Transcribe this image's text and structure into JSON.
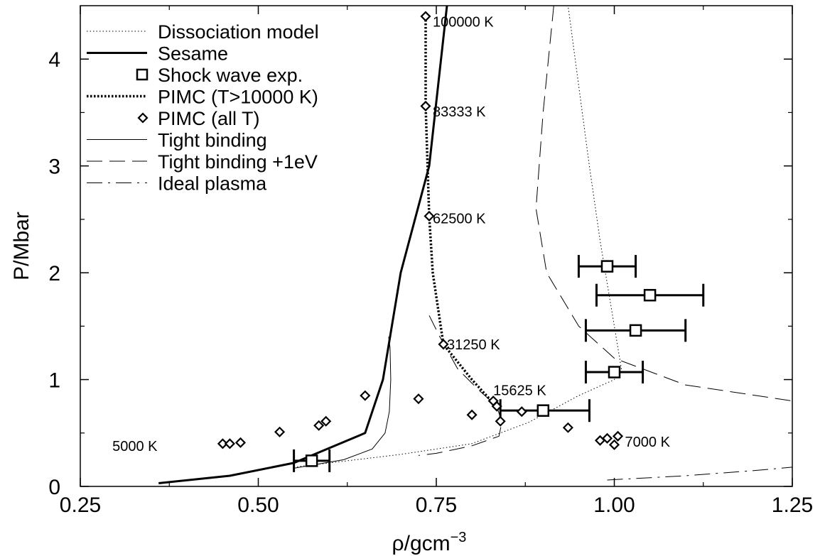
{
  "chart_data": {
    "type": "line",
    "xlabel": "ρ/gcm",
    "xlabel_sup": "−3",
    "ylabel": "P/Mbar",
    "xlim": [
      0.25,
      1.25
    ],
    "ylim": [
      0,
      4.5
    ],
    "xticks": [
      0.25,
      0.5,
      0.75,
      1.0,
      1.25
    ],
    "xtick_labels": [
      "0.25",
      "0.50",
      "0.75",
      "1.00",
      "1.25"
    ],
    "yticks": [
      0,
      1,
      2,
      3,
      4
    ],
    "ytick_labels": [
      "0",
      "1",
      "2",
      "3",
      "4"
    ],
    "grid": false,
    "legend_position": "top-left",
    "legend": [
      {
        "label": "Dissociation model",
        "style": "dotted-thin"
      },
      {
        "label": "Sesame",
        "style": "solid-thick"
      },
      {
        "label": "Shock wave exp.",
        "style": "square-marker"
      },
      {
        "label": "PIMC (T>10000 K)",
        "style": "dotted-thick"
      },
      {
        "label": "PIMC (all T)",
        "style": "diamond-marker"
      },
      {
        "label": "Tight binding",
        "style": "solid-thin"
      },
      {
        "label": "Tight binding +1eV",
        "style": "dashed-long"
      },
      {
        "label": "Ideal plasma",
        "style": "dash-dot"
      }
    ],
    "series": [
      {
        "name": "Sesame",
        "style": "solid-thick",
        "x": [
          0.36,
          0.46,
          0.55,
          0.65,
          0.675,
          0.7,
          0.74,
          0.765
        ],
        "y": [
          0.03,
          0.1,
          0.22,
          0.5,
          1.0,
          2.0,
          3.0,
          4.5
        ]
      },
      {
        "name": "Dissociation model",
        "style": "dotted-thin",
        "x": [
          0.55,
          0.6,
          0.7,
          0.8,
          0.88,
          0.95,
          1.0,
          1.01,
          0.995,
          0.98,
          0.965,
          0.945,
          0.935
        ],
        "y": [
          0.18,
          0.22,
          0.3,
          0.4,
          0.6,
          0.85,
          1.0,
          1.1,
          1.7,
          2.3,
          3.0,
          4.0,
          4.5
        ]
      },
      {
        "name": "Tight binding",
        "style": "solid-thin",
        "x": [
          0.55,
          0.62,
          0.66,
          0.678,
          0.684,
          0.686,
          0.685,
          0.683
        ],
        "y": [
          0.17,
          0.25,
          0.35,
          0.5,
          0.7,
          1.0,
          1.3,
          1.4
        ]
      },
      {
        "name": "Tight binding +1eV",
        "style": "dashed-long",
        "x": [
          0.74,
          0.755,
          0.78,
          0.81,
          0.835,
          0.842,
          0.838,
          0.8,
          0.75,
          0.725
        ],
        "y": [
          1.6,
          1.4,
          1.1,
          0.9,
          0.75,
          0.6,
          0.47,
          0.38,
          0.31,
          0.29
        ]
      },
      {
        "name": "Tight binding +1eV",
        "style": "dashed-long",
        "x": [
          0.915,
          0.9,
          0.89,
          0.905,
          0.95,
          1.0,
          1.1,
          1.25
        ],
        "y": [
          4.5,
          3.5,
          2.6,
          2.0,
          1.5,
          1.2,
          0.95,
          0.8
        ]
      },
      {
        "name": "Ideal plasma",
        "style": "dash-dot",
        "x": [
          0.99,
          1.1,
          1.2,
          1.25
        ],
        "y": [
          0.06,
          0.1,
          0.15,
          0.18
        ]
      },
      {
        "name": "PIMC (T>10000 K)",
        "style": "dotted-thick",
        "x": [
          0.735,
          0.735,
          0.74,
          0.745,
          0.76,
          0.8,
          0.83
        ],
        "y": [
          4.4,
          3.56,
          2.53,
          2.0,
          1.33,
          1.0,
          0.78
        ]
      }
    ],
    "markers": {
      "pimc_all_t": {
        "name": "PIMC (all T)",
        "x": [
          0.735,
          0.735,
          0.74,
          0.76,
          0.83,
          0.835,
          0.45,
          0.46,
          0.475,
          0.53,
          0.585,
          0.595,
          0.65,
          0.725,
          0.8,
          0.84,
          0.87,
          0.935,
          0.98,
          0.99,
          1.005,
          1.0
        ],
        "y": [
          4.4,
          3.56,
          2.53,
          1.33,
          0.8,
          0.75,
          0.4,
          0.4,
          0.41,
          0.51,
          0.57,
          0.61,
          0.85,
          0.82,
          0.67,
          0.61,
          0.7,
          0.55,
          0.43,
          0.45,
          0.47,
          0.39
        ]
      },
      "shock_wave": {
        "name": "Shock wave exp.",
        "x": [
          0.575,
          0.9,
          1.0,
          1.03,
          1.05,
          0.99
        ],
        "y": [
          0.24,
          0.71,
          1.07,
          1.46,
          1.79,
          2.06
        ],
        "xerr_low": [
          0.55,
          0.84,
          0.96,
          0.96,
          0.975,
          0.95
        ],
        "xerr_high": [
          0.6,
          0.965,
          1.04,
          1.1,
          1.125,
          1.03
        ]
      }
    },
    "annotations": [
      {
        "text": "100000 K",
        "x": 0.745,
        "y": 4.35
      },
      {
        "text": "83333 K",
        "x": 0.745,
        "y": 3.51
      },
      {
        "text": "62500 K",
        "x": 0.745,
        "y": 2.51
      },
      {
        "text": "31250 K",
        "x": 0.765,
        "y": 1.33
      },
      {
        "text": "15625 K",
        "x": 0.83,
        "y": 0.9
      },
      {
        "text": "5000 K",
        "x": 0.295,
        "y": 0.38
      },
      {
        "text": "7000 K",
        "x": 1.015,
        "y": 0.42
      }
    ]
  }
}
